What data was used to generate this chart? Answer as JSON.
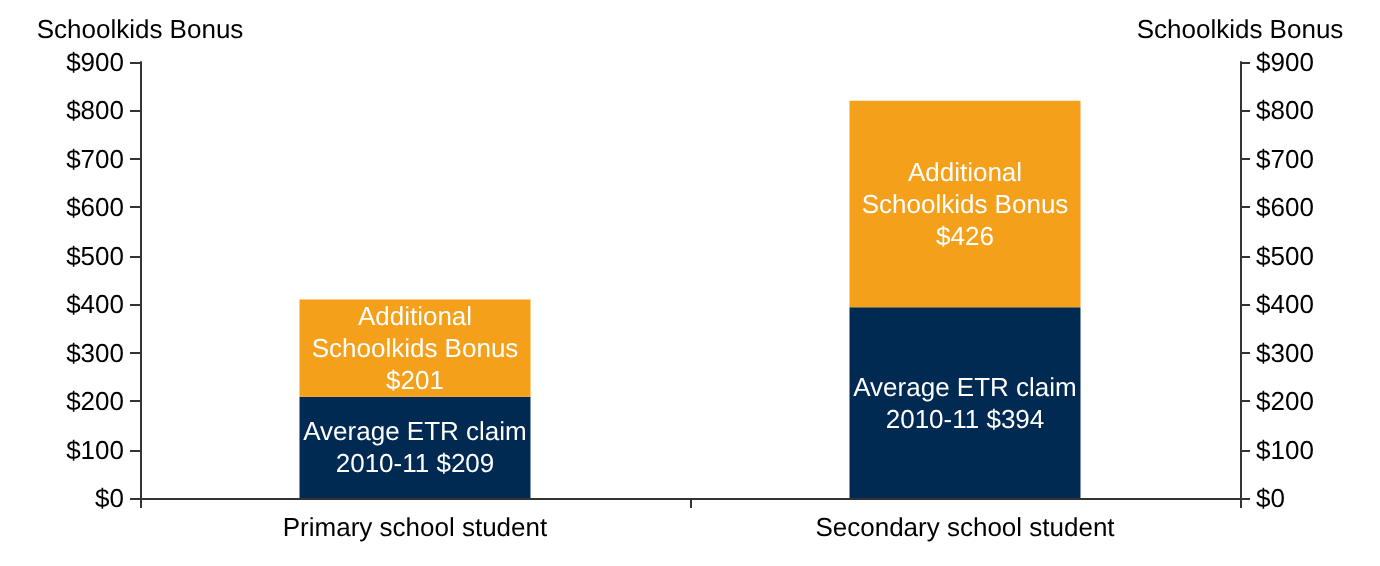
{
  "chart_data": {
    "type": "bar",
    "stacked": true,
    "categories": [
      "Primary school student",
      "Secondary school student"
    ],
    "series": [
      {
        "color": "#002a52",
        "values": [
          209,
          394
        ],
        "value_labels": [
          "Average ETR claim\n2010-11 $209",
          "Average ETR claim\n2010-11 $394"
        ]
      },
      {
        "color": "#f5a01a",
        "values": [
          201,
          426
        ],
        "value_labels": [
          "Additional\nSchoolkids Bonus\n$201",
          "Additional\nSchoolkids Bonus\n$426"
        ]
      }
    ],
    "ylabel": "Schoolkids Bonus",
    "y2label": "Schoolkids Bonus",
    "ylim": [
      0,
      900
    ],
    "yticks": [
      {
        "value": 0,
        "label": "$0"
      },
      {
        "value": 100,
        "label": "$100"
      },
      {
        "value": 200,
        "label": "$200"
      },
      {
        "value": 300,
        "label": "$300"
      },
      {
        "value": 400,
        "label": "$400"
      },
      {
        "value": 500,
        "label": "$500"
      },
      {
        "value": 600,
        "label": "$600"
      },
      {
        "value": 700,
        "label": "$700"
      },
      {
        "value": 800,
        "label": "$800"
      },
      {
        "value": 900,
        "label": "$900"
      }
    ],
    "y2lim": [
      0,
      900
    ],
    "y2ticks": [
      {
        "value": 0,
        "label": "$0"
      },
      {
        "value": 100,
        "label": "$100"
      },
      {
        "value": 200,
        "label": "$200"
      },
      {
        "value": 300,
        "label": "$300"
      },
      {
        "value": 400,
        "label": "$400"
      },
      {
        "value": 500,
        "label": "$500"
      },
      {
        "value": 600,
        "label": "$600"
      },
      {
        "value": 700,
        "label": "$700"
      },
      {
        "value": 800,
        "label": "$800"
      },
      {
        "value": 900,
        "label": "$900"
      }
    ],
    "grid": false
  }
}
